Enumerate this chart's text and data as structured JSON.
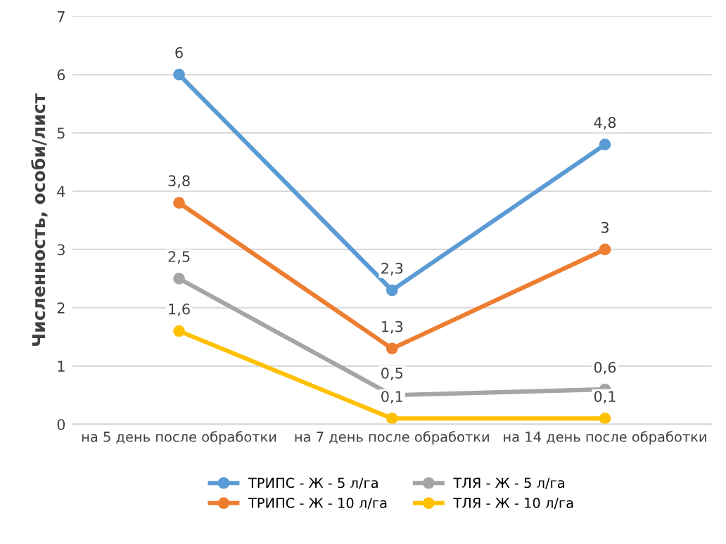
{
  "chart_data": {
    "type": "line",
    "ylabel": "Численность, особи/лист",
    "categories": [
      "на 5 день после обработки",
      "на 7 день после обработки",
      "на 14 день после обработки"
    ],
    "series": [
      {
        "name": "ТРИПС - Ж - 5 л/га",
        "color": "#5b9bd5",
        "values": [
          6,
          2.3,
          4.8
        ],
        "value_labels": [
          "6",
          "2,3",
          "4,8"
        ]
      },
      {
        "name": "ТРИПС - Ж - 10 л/га",
        "color": "#ed7d31",
        "values": [
          3.8,
          1.3,
          3
        ],
        "value_labels": [
          "3,8",
          "1,3",
          "3"
        ]
      },
      {
        "name": "ТЛЯ - Ж - 5 л/га",
        "color": "#a5a5a5",
        "values": [
          2.5,
          0.5,
          0.6
        ],
        "value_labels": [
          "2,5",
          "0,5",
          "0,6"
        ]
      },
      {
        "name": "ТЛЯ - Ж - 10 л/га",
        "color": "#ffc000",
        "values": [
          1.6,
          0.1,
          0.1
        ],
        "value_labels": [
          "1,6",
          "0,1",
          "0,1"
        ]
      }
    ],
    "ylim": [
      0,
      7
    ],
    "yticks": [
      0,
      1,
      2,
      3,
      4,
      5,
      6,
      7
    ],
    "grid": "y",
    "legend": "bottom",
    "marker": "circle",
    "line_style": "solid"
  }
}
